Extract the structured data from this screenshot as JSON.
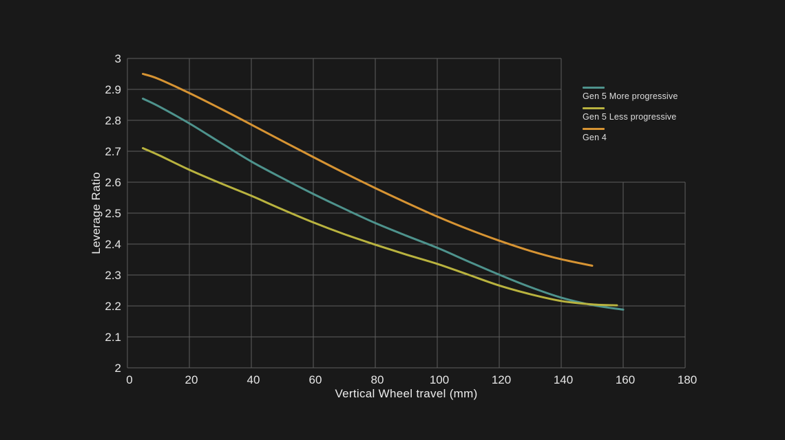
{
  "colors": {
    "background": "#191919",
    "grid": "#5e5e5e",
    "tick_text": "#e6e6e6",
    "axis_title_text": "#ececec",
    "legend_text": "#dedede"
  },
  "chart_data": {
    "type": "line",
    "title": "",
    "xlabel": "Vertical Wheel travel (mm)",
    "ylabel": "Leverage Ratio",
    "xlim": [
      0,
      180
    ],
    "ylim": [
      2,
      3
    ],
    "xticks": [
      0,
      20,
      40,
      60,
      80,
      100,
      120,
      140,
      160,
      180
    ],
    "yticks": [
      2,
      2.1,
      2.2,
      2.3,
      2.4,
      2.5,
      2.6,
      2.7,
      2.8,
      2.9,
      3
    ],
    "grid": true,
    "grid_notch": {
      "comment": "grid is L-shaped: above y_boundary the grid only extends to x_max_above",
      "x_max_above": 140,
      "y_boundary": 2.6
    },
    "legend": {
      "position": "top-right"
    },
    "series": [
      {
        "name": "Gen 5 More progressive",
        "color": "#4e938d",
        "points": [
          [
            5,
            2.87
          ],
          [
            10,
            2.846
          ],
          [
            20,
            2.79
          ],
          [
            30,
            2.728
          ],
          [
            40,
            2.667
          ],
          [
            50,
            2.613
          ],
          [
            60,
            2.562
          ],
          [
            70,
            2.514
          ],
          [
            80,
            2.468
          ],
          [
            90,
            2.427
          ],
          [
            100,
            2.388
          ],
          [
            110,
            2.344
          ],
          [
            120,
            2.301
          ],
          [
            130,
            2.261
          ],
          [
            140,
            2.227
          ],
          [
            150,
            2.203
          ],
          [
            160,
            2.188
          ]
        ]
      },
      {
        "name": "Gen 5 Less progressive",
        "color": "#b9b33f",
        "points": [
          [
            5,
            2.71
          ],
          [
            10,
            2.688
          ],
          [
            20,
            2.64
          ],
          [
            30,
            2.597
          ],
          [
            40,
            2.556
          ],
          [
            50,
            2.512
          ],
          [
            60,
            2.47
          ],
          [
            70,
            2.432
          ],
          [
            80,
            2.398
          ],
          [
            90,
            2.366
          ],
          [
            100,
            2.336
          ],
          [
            110,
            2.301
          ],
          [
            120,
            2.266
          ],
          [
            130,
            2.238
          ],
          [
            140,
            2.216
          ],
          [
            150,
            2.205
          ],
          [
            158,
            2.202
          ]
        ]
      },
      {
        "name": "Gen 4",
        "color": "#d79433",
        "points": [
          [
            5,
            2.95
          ],
          [
            10,
            2.934
          ],
          [
            20,
            2.888
          ],
          [
            30,
            2.838
          ],
          [
            40,
            2.786
          ],
          [
            50,
            2.733
          ],
          [
            60,
            2.681
          ],
          [
            70,
            2.63
          ],
          [
            80,
            2.581
          ],
          [
            90,
            2.534
          ],
          [
            100,
            2.489
          ],
          [
            110,
            2.448
          ],
          [
            120,
            2.411
          ],
          [
            130,
            2.378
          ],
          [
            140,
            2.351
          ],
          [
            150,
            2.33
          ]
        ]
      }
    ]
  }
}
